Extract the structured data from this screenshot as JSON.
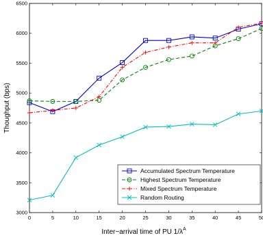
{
  "chart_data": {
    "type": "line",
    "title": "",
    "xlabel": "Inter−arrival time of PU 1/λ",
    "xlabel_superscript": "A",
    "ylabel": "Thoughput (bps)",
    "xlim": [
      0,
      50
    ],
    "ylim": [
      3000,
      6500
    ],
    "x_ticks": [
      0,
      5,
      10,
      15,
      20,
      25,
      30,
      35,
      40,
      45,
      50
    ],
    "y_ticks": [
      3000,
      3500,
      4000,
      4500,
      5000,
      5500,
      6000,
      6500
    ],
    "x": [
      0,
      5,
      10,
      15,
      20,
      25,
      30,
      35,
      40,
      45,
      50
    ],
    "legend_position": "lower-right",
    "grid": false,
    "series": [
      {
        "name": "Accumulated Spectrum Temperature",
        "color": "#0000cc",
        "dash": "solid",
        "marker": "square",
        "values": [
          4840,
          4690,
          4860,
          5250,
          5510,
          5880,
          5880,
          5940,
          5920,
          6070,
          6160
        ]
      },
      {
        "name": "Highest Spectrum Temperature",
        "color": "#007f00",
        "dash": "dashed",
        "marker": "circle",
        "values": [
          4870,
          4860,
          4860,
          4880,
          5220,
          5430,
          5560,
          5620,
          5790,
          5910,
          6080
        ]
      },
      {
        "name": "Mixed Spectrum Temperature",
        "color": "#ff0000",
        "dash": "dashdot",
        "marker": "plus",
        "values": [
          4670,
          4710,
          4750,
          4940,
          5430,
          5680,
          5770,
          5840,
          5840,
          6100,
          6170
        ]
      },
      {
        "name": "Random Routing",
        "color": "#00bfbf",
        "dash": "solid",
        "marker": "x",
        "values": [
          3210,
          3290,
          3920,
          4130,
          4270,
          4430,
          4440,
          4480,
          4470,
          4650,
          4700
        ]
      }
    ]
  }
}
